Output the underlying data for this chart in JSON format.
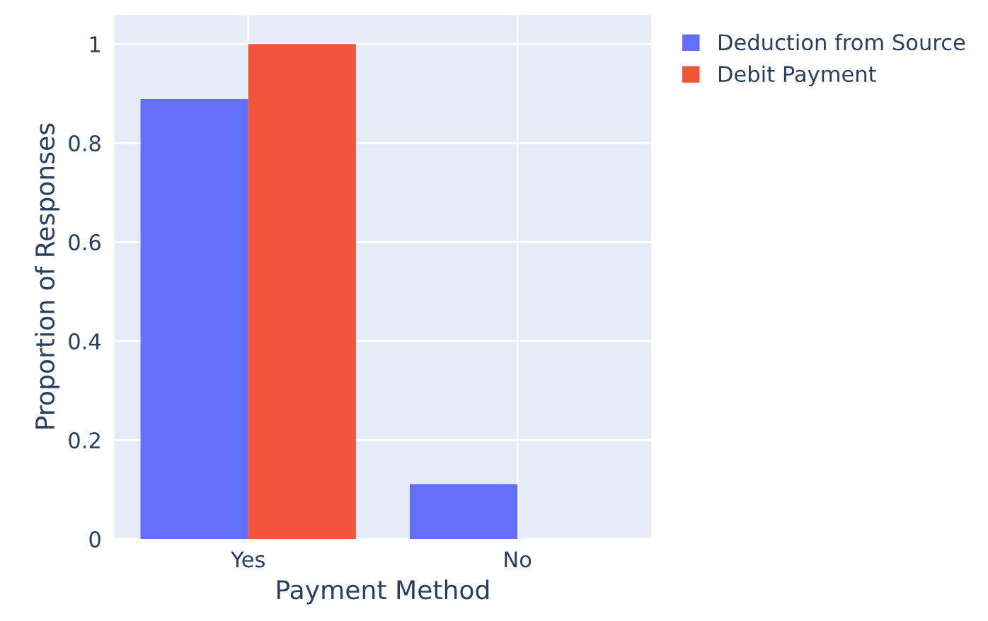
{
  "chart_data": {
    "type": "bar",
    "xlabel": "Payment Method",
    "ylabel": "Proportion of Responses",
    "categories": [
      "Yes",
      "No"
    ],
    "series": [
      {
        "name": "Deduction from Source",
        "color": "#636efa",
        "values": [
          0.889,
          0.111
        ]
      },
      {
        "name": "Debit Payment",
        "color": "#ef553b",
        "values": [
          1.0,
          0
        ]
      }
    ],
    "ylim": [
      0,
      1.06
    ],
    "yticks": [
      0,
      0.2,
      0.4,
      0.6,
      0.8,
      1
    ],
    "grid": true,
    "legend": "top right"
  }
}
